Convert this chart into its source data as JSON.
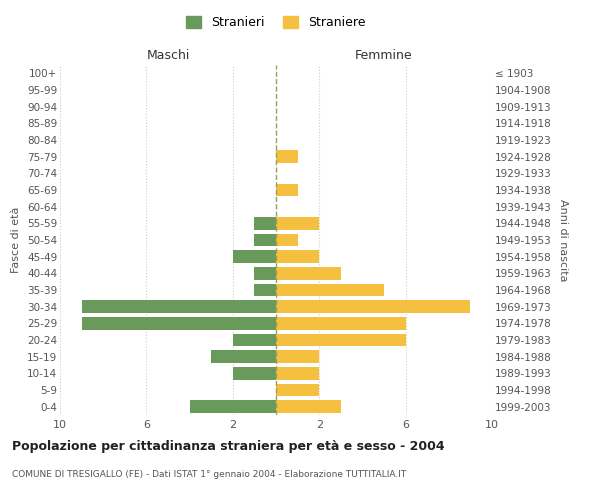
{
  "age_groups": [
    "0-4",
    "5-9",
    "10-14",
    "15-19",
    "20-24",
    "25-29",
    "30-34",
    "35-39",
    "40-44",
    "45-49",
    "50-54",
    "55-59",
    "60-64",
    "65-69",
    "70-74",
    "75-79",
    "80-84",
    "85-89",
    "90-94",
    "95-99",
    "100+"
  ],
  "birth_years": [
    "1999-2003",
    "1994-1998",
    "1989-1993",
    "1984-1988",
    "1979-1983",
    "1974-1978",
    "1969-1973",
    "1964-1968",
    "1959-1963",
    "1954-1958",
    "1949-1953",
    "1944-1948",
    "1939-1943",
    "1934-1938",
    "1929-1933",
    "1924-1928",
    "1919-1923",
    "1914-1918",
    "1909-1913",
    "1904-1908",
    "≤ 1903"
  ],
  "males": [
    4,
    0,
    2,
    3,
    2,
    9,
    9,
    1,
    1,
    2,
    1,
    1,
    0,
    0,
    0,
    0,
    0,
    0,
    0,
    0,
    0
  ],
  "females": [
    3,
    2,
    2,
    2,
    6,
    6,
    9,
    5,
    3,
    2,
    1,
    2,
    0,
    1,
    0,
    1,
    0,
    0,
    0,
    0,
    0
  ],
  "male_color": "#6a9a5b",
  "female_color": "#f5c040",
  "center_line_color": "#9b9b5a",
  "title": "Popolazione per cittadinanza straniera per età e sesso - 2004",
  "subtitle": "COMUNE DI TRESIGALLO (FE) - Dati ISTAT 1° gennaio 2004 - Elaborazione TUTTITALIA.IT",
  "legend_male": "Stranieri",
  "legend_female": "Straniere",
  "xlabel_left": "Maschi",
  "xlabel_right": "Femmine",
  "ylabel_left": "Fasce di età",
  "ylabel_right": "Anni di nascita",
  "xlim": 10,
  "background_color": "#ffffff",
  "grid_color": "#cccccc"
}
